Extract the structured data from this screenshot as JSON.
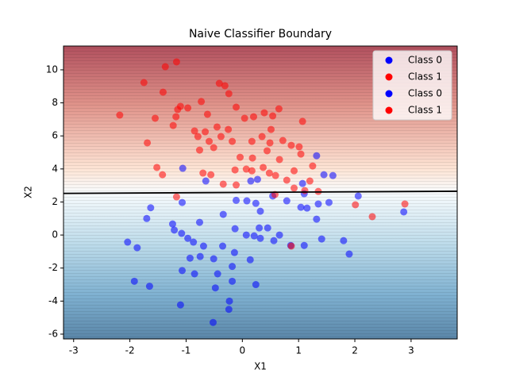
{
  "chart_data": {
    "type": "scatter",
    "title": "Naive Classifier Boundary",
    "x_label": "X1",
    "y_label": "X2",
    "xlim": [
      -3.18,
      3.82
    ],
    "ylim": [
      -6.29,
      11.44
    ],
    "xticks": [
      -3,
      -2,
      -1,
      0,
      1,
      2,
      3
    ],
    "yticks": [
      -6,
      -4,
      -2,
      0,
      2,
      4,
      6,
      8,
      10
    ],
    "legend": "upper right",
    "boundary": {
      "color": "#000000",
      "x": [
        -3.18,
        3.82
      ],
      "y": [
        2.52,
        2.65
      ]
    },
    "series": [
      {
        "name": "Class 0",
        "color": "#0000ff",
        "x": [
          -0.52,
          -0.23,
          -0.24,
          -1.1,
          -0.48,
          0.24,
          -1.65,
          -1.92,
          -0.18,
          -1.07,
          -0.85,
          -0.44,
          -0.18,
          -2.04,
          -1.87,
          -1.7,
          -1.63,
          -1.24,
          -1.21,
          -1.08,
          -0.97,
          -0.87,
          -0.69,
          -0.93,
          -0.75,
          -0.51,
          -0.35,
          -0.14,
          0.14,
          -0.13,
          0.07,
          0.21,
          0.32,
          0.56,
          0.66,
          0.45,
          0.3,
          -0.76,
          -0.34
        ],
        "y": [
          -5.29,
          -4.0,
          -4.5,
          -4.23,
          -3.2,
          -3.0,
          -3.1,
          -2.8,
          -2.8,
          -2.15,
          -2.35,
          -2.35,
          -1.9,
          -0.43,
          -0.77,
          1.0,
          1.65,
          0.67,
          0.3,
          0.1,
          -0.2,
          -0.43,
          -0.67,
          -1.4,
          -1.3,
          -1.44,
          -0.67,
          -1.06,
          -1.5,
          0.38,
          0.0,
          -0.05,
          -0.2,
          -0.34,
          0.0,
          0.43,
          0.43,
          0.77,
          1.25
        ]
      },
      {
        "name": "Class 1",
        "color": "#ff0000",
        "x": [
          -1.17,
          -1.37,
          -1.75,
          -1.41,
          -0.41,
          -0.31,
          -0.24,
          -0.73,
          -1.1,
          -0.97,
          -1.15,
          -0.11,
          -2.18,
          -1.55,
          -1.18,
          -0.62,
          0.04,
          0.2,
          0.39,
          0.54,
          0.65,
          1.07,
          -1.23,
          -0.85,
          -0.66,
          -0.45,
          -0.25,
          0.51,
          -1.69,
          -0.79,
          -0.59,
          -0.38,
          -0.18,
          0.17,
          0.35,
          0.49,
          0.72,
          0.87,
          1.01,
          -0.76,
          -0.51
        ],
        "y": [
          10.48,
          10.19,
          9.23,
          8.65,
          9.18,
          9.04,
          8.56,
          8.08,
          7.79,
          7.69,
          7.6,
          7.74,
          7.26,
          7.07,
          7.16,
          7.31,
          7.07,
          7.16,
          7.4,
          7.21,
          7.64,
          6.88,
          6.63,
          6.3,
          6.25,
          6.54,
          6.39,
          6.39,
          5.58,
          5.96,
          5.67,
          5.96,
          5.67,
          5.67,
          5.96,
          5.58,
          5.72,
          5.43,
          5.34,
          5.14,
          5.29
        ]
      },
      {
        "name": "Class 0",
        "color": "#0000ff",
        "x": [
          -0.11,
          0.08,
          0.24,
          0.32,
          0.54,
          0.79,
          1.04,
          1.15,
          1.35,
          1.32,
          1.41,
          1.1,
          0.86,
          1.8,
          1.9,
          2.06,
          2.87,
          1.32,
          1.61,
          1.45,
          -1.06,
          -0.65,
          0.27,
          1.07,
          1.1,
          1.54,
          -1.07,
          0.15
        ],
        "y": [
          2.1,
          2.07,
          1.92,
          1.44,
          2.36,
          2.07,
          1.68,
          1.63,
          1.88,
          0.96,
          -0.24,
          -0.63,
          -0.63,
          -0.34,
          -1.15,
          2.36,
          1.4,
          4.8,
          3.6,
          3.65,
          4.04,
          3.27,
          3.37,
          3.12,
          2.5,
          1.97,
          1.97,
          3.27
        ]
      },
      {
        "name": "Class 1",
        "color": "#ff0000",
        "x": [
          -0.04,
          0.18,
          0.44,
          0.66,
          1.04,
          -1.52,
          -1.42,
          -0.7,
          -0.56,
          -0.13,
          0.07,
          0.17,
          0.37,
          0.48,
          0.59,
          0.92,
          1.25,
          0.79,
          0.92,
          1.2,
          1.11,
          1.35,
          -0.34,
          -0.11,
          -1.17,
          0.58,
          2.01,
          2.31,
          2.89,
          0.87
        ],
        "y": [
          4.71,
          4.66,
          5.1,
          4.57,
          4.9,
          4.09,
          3.65,
          3.75,
          3.65,
          3.94,
          3.99,
          3.89,
          4.09,
          3.75,
          3.6,
          3.89,
          4.18,
          3.32,
          2.84,
          3.27,
          2.69,
          2.64,
          3.08,
          3.03,
          2.31,
          2.45,
          1.83,
          1.11,
          1.88,
          -0.67
        ]
      }
    ]
  }
}
